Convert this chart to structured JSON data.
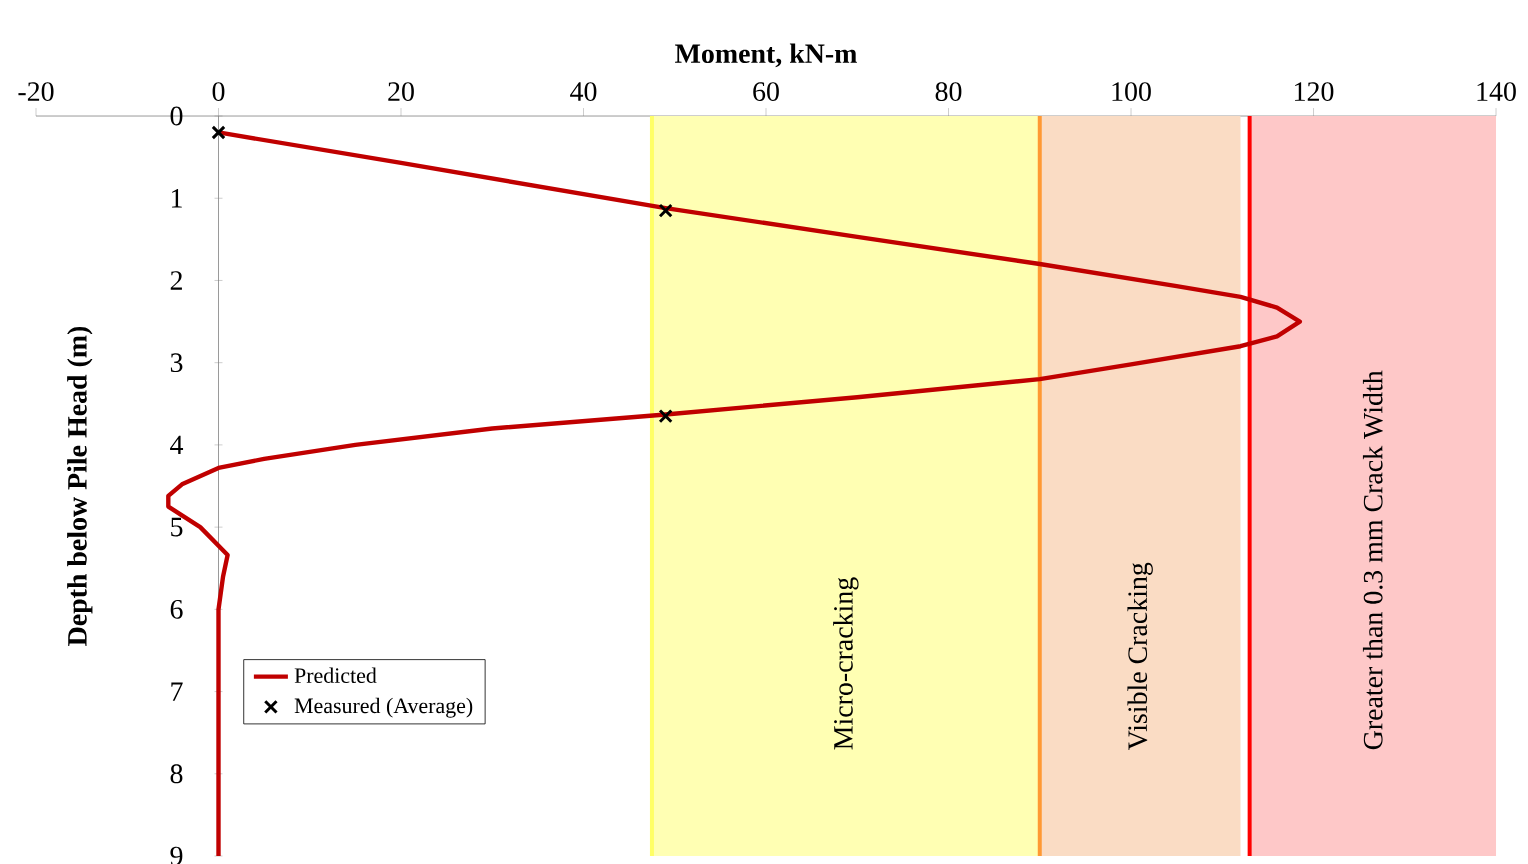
{
  "chart_data": {
    "type": "line",
    "xlabel": "Moment, kN-m",
    "ylabel": "Depth below Pile Head (m)",
    "xlim": [
      -20,
      140
    ],
    "xticks": [
      -20,
      0,
      20,
      40,
      60,
      80,
      100,
      120,
      140
    ],
    "ylim": [
      9,
      0
    ],
    "yticks": [
      0,
      1,
      2,
      3,
      4,
      5,
      6,
      7,
      8,
      9
    ],
    "legend": "bottom left",
    "series": [
      {
        "name": "Predicted",
        "type": "line",
        "color": "#c00000",
        "marker": "none",
        "line_style": "solid",
        "x": [
          0,
          20,
          49,
          70,
          90,
          105,
          112,
          116,
          118.5,
          116,
          112,
          100,
          90,
          70,
          49,
          30,
          15,
          5,
          0,
          -4,
          -5.5,
          -5.5,
          -2,
          1,
          0.5,
          0,
          0
        ],
        "values": [
          0.2,
          0.57,
          1.12,
          1.47,
          1.8,
          2.07,
          2.2,
          2.33,
          2.5,
          2.68,
          2.8,
          3.02,
          3.2,
          3.42,
          3.63,
          3.8,
          4.0,
          4.17,
          4.28,
          4.48,
          4.62,
          4.75,
          5.0,
          5.34,
          5.6,
          6,
          9
        ]
      },
      {
        "name": "Measured (Average)",
        "type": "scatter",
        "color": "#000000",
        "marker": "cross",
        "x": [
          0,
          49,
          49
        ],
        "values": [
          0.2,
          1.15,
          3.65
        ]
      }
    ],
    "bands": [
      {
        "axis": "x",
        "from": 47.5,
        "to": 90,
        "label": "Micro-cracking",
        "color": "#ffffb3"
      },
      {
        "axis": "x",
        "from": 90,
        "to": 112,
        "label": "Visible Cracking",
        "color": "#fadcc4"
      },
      {
        "axis": "x",
        "from": 113,
        "to": 140,
        "label": "Greater than 0.3 mm Crack Width",
        "color": "#fec8c8"
      }
    ],
    "ref_lines": [
      {
        "axis": "x",
        "value": 47.5,
        "color": "#ffff66"
      },
      {
        "axis": "x",
        "value": 90,
        "color": "#ff9933"
      },
      {
        "axis": "x",
        "value": 113,
        "color": "#ff0000"
      }
    ]
  }
}
